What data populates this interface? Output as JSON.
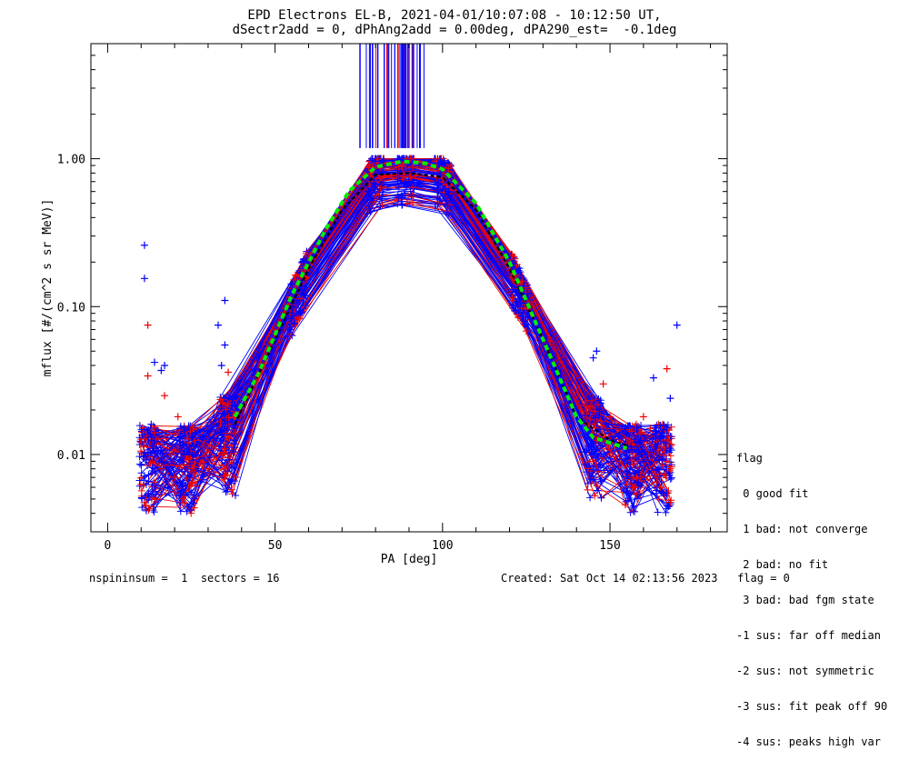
{
  "chart_data": {
    "type": "line",
    "title_line1": "EPD Electrons EL-B, 2021-04-01/10:07:08 - 10:12:50 UT,",
    "title_line2": "dSectr2add = 0, dPhAng2add = 0.00deg, dPA290_est=  -0.1deg",
    "xlabel": "PA [deg]",
    "ylabel": "mflux [#/(cm^2 s sr MeV)]",
    "xlim": [
      -5,
      185
    ],
    "ylim": [
      0.003,
      6.0
    ],
    "yscale": "log",
    "x_ticks": [
      0,
      50,
      100,
      150
    ],
    "y_ticks": [
      {
        "value": 0.01,
        "label": "0.01"
      },
      {
        "value": 0.1,
        "label": "0.10"
      },
      {
        "value": 1.0,
        "label": "1.00"
      }
    ],
    "grid": false,
    "colors": {
      "red": "#ee0000",
      "blue": "#0000ff",
      "fit": "#00ee00",
      "black": "#000000"
    },
    "fit_curve": {
      "name": "fit",
      "x": [
        38,
        45,
        55,
        65,
        72,
        80,
        88,
        95,
        100,
        110,
        120,
        130,
        140,
        145,
        150,
        155
      ],
      "y": [
        0.018,
        0.035,
        0.12,
        0.33,
        0.6,
        0.88,
        0.96,
        0.93,
        0.85,
        0.5,
        0.2,
        0.06,
        0.018,
        0.013,
        0.012,
        0.011
      ]
    },
    "median_curve": {
      "x": [
        38,
        50,
        60,
        70,
        80,
        90,
        100,
        110,
        120,
        130,
        140,
        150,
        155
      ],
      "y": [
        0.016,
        0.06,
        0.18,
        0.45,
        0.78,
        0.8,
        0.75,
        0.45,
        0.18,
        0.06,
        0.018,
        0.0125,
        0.0115
      ]
    },
    "tail_points": {
      "red": [
        [
          12,
          0.075
        ],
        [
          12,
          0.034
        ],
        [
          14,
          0.014
        ],
        [
          16,
          0.008
        ],
        [
          17,
          0.025
        ],
        [
          20,
          0.007
        ],
        [
          21,
          0.018
        ],
        [
          24,
          0.012
        ],
        [
          30,
          0.008
        ],
        [
          35,
          0.011
        ],
        [
          36,
          0.036
        ],
        [
          36,
          0.022
        ],
        [
          148,
          0.03
        ],
        [
          150,
          0.018
        ],
        [
          158,
          0.007
        ],
        [
          160,
          0.018
        ],
        [
          162,
          0.015
        ],
        [
          165,
          0.006
        ],
        [
          167,
          0.038
        ],
        [
          168,
          0.008
        ]
      ],
      "blue": [
        [
          11,
          0.26
        ],
        [
          11,
          0.155
        ],
        [
          14,
          0.042
        ],
        [
          16,
          0.037
        ],
        [
          17,
          0.04
        ],
        [
          13,
          0.016
        ],
        [
          14,
          0.012
        ],
        [
          16,
          0.009
        ],
        [
          18,
          0.006
        ],
        [
          22,
          0.011
        ],
        [
          27,
          0.008
        ],
        [
          35,
          0.11
        ],
        [
          33,
          0.075
        ],
        [
          35,
          0.055
        ],
        [
          34,
          0.04
        ],
        [
          146,
          0.05
        ],
        [
          145,
          0.045
        ],
        [
          163,
          0.033
        ],
        [
          165,
          0.013
        ],
        [
          168,
          0.024
        ],
        [
          170,
          0.075
        ],
        [
          168,
          0.011
        ],
        [
          166,
          0.0055
        ],
        [
          160,
          0.009
        ]
      ]
    },
    "peak_lines": {
      "x_range": [
        75,
        95
      ],
      "y_bottom": 1.18,
      "y_top": 6.0
    },
    "legend": {
      "header": "flag",
      "entries": [
        " 0 good fit",
        " 1 bad: not converge",
        " 2 bad: no fit",
        " 3 bad: bad fgm state",
        "-1 sus: far off median",
        "-2 sus: not symmetric",
        "-3 sus: fit peak off 90",
        "-4 sus: peaks high var"
      ],
      "position": "right"
    },
    "footer_left": "nspininsum =  1  sectors = 16",
    "footer_right": "Created: Sat Oct 14 02:13:56 2023   flag = 0"
  }
}
